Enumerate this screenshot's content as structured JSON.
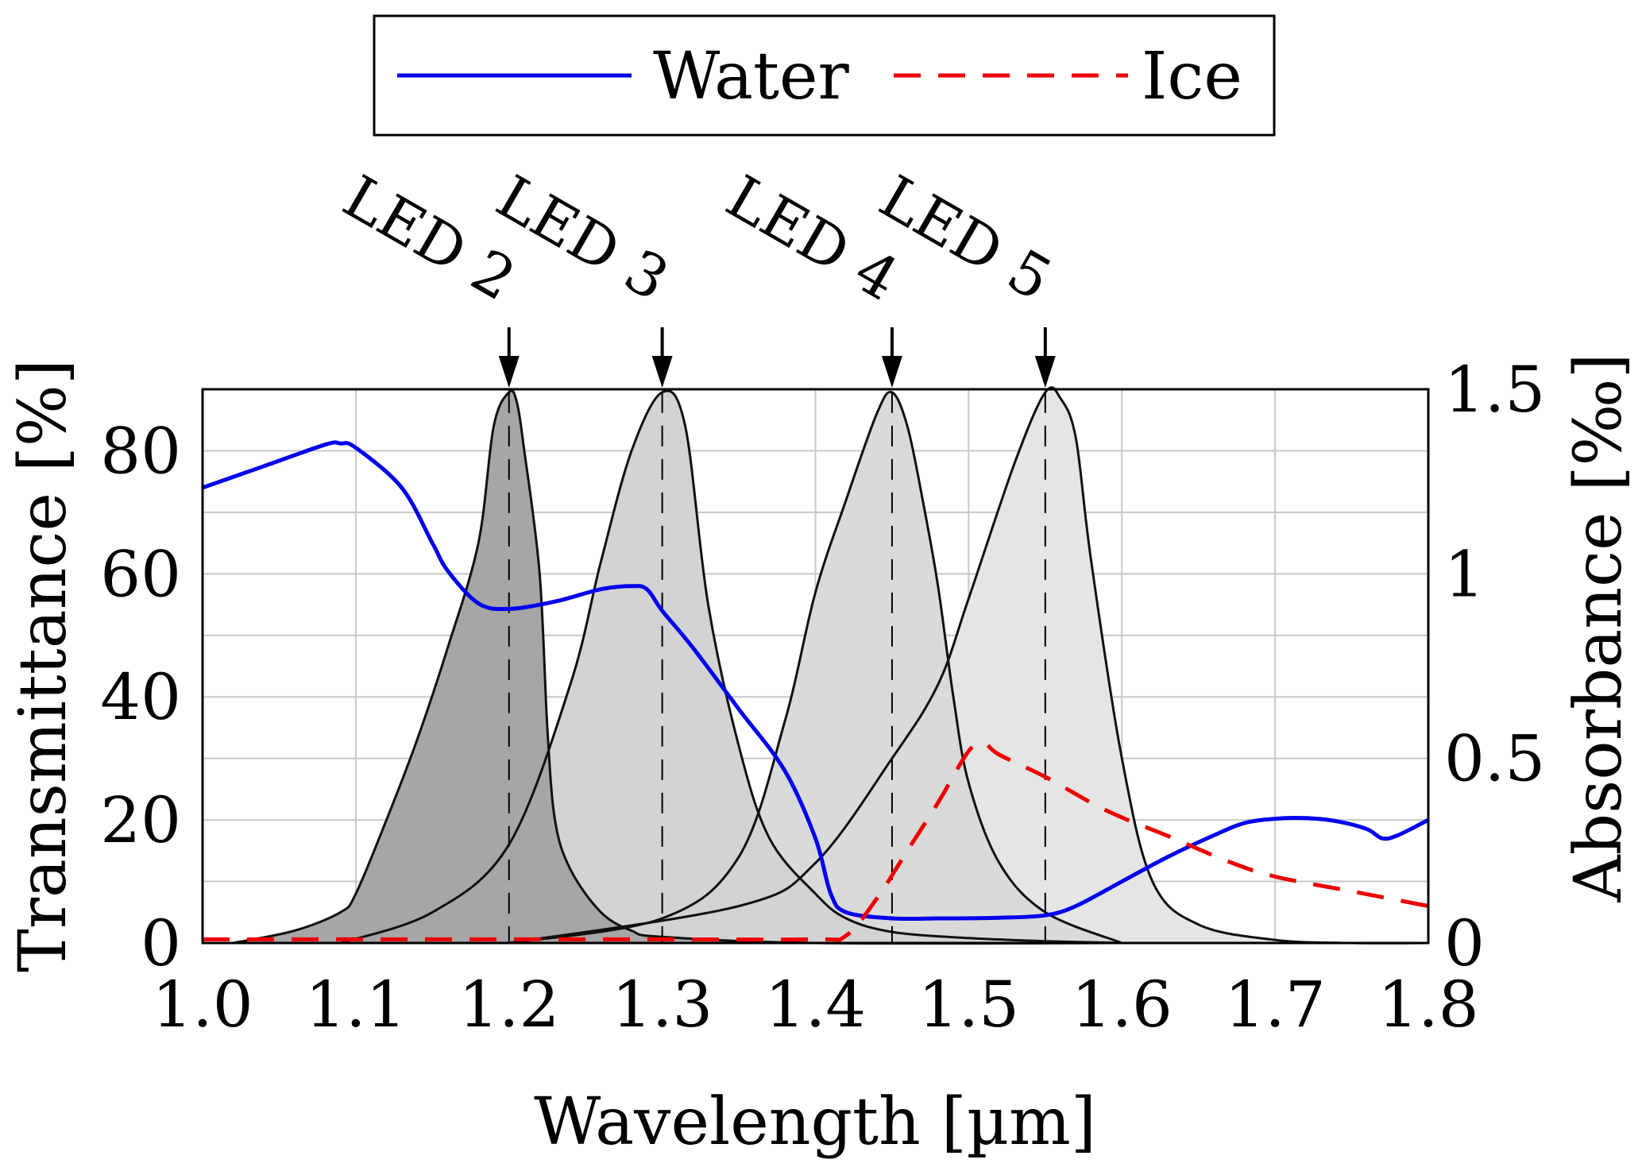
{
  "chart_data": {
    "type": "line",
    "xlabel": "Wavelength [µm]",
    "ylabel_left": "Transmittance [%]",
    "ylabel_right": "Absorbance [‰]",
    "xlim": [
      1.0,
      1.8
    ],
    "ylim_left": [
      0,
      90
    ],
    "ylim_right": [
      0,
      1.5
    ],
    "x_ticks": [
      "1.0",
      "1.1",
      "1.2",
      "1.3",
      "1.4",
      "1.5",
      "1.6",
      "1.7",
      "1.8"
    ],
    "y_left_ticks": [
      "0",
      "20",
      "40",
      "60",
      "80"
    ],
    "y_right_ticks": [
      "0",
      "0.5",
      "1",
      "1.5"
    ],
    "grid": true,
    "legend": {
      "position": "top",
      "entries": [
        "Water",
        "Ice"
      ]
    },
    "series": [
      {
        "name": "Water",
        "axis": "left",
        "color": "#0000ee",
        "style": "solid",
        "x": [
          1.0,
          1.04,
          1.08,
          1.09,
          1.1,
          1.13,
          1.15,
          1.16,
          1.18,
          1.2,
          1.23,
          1.26,
          1.28,
          1.29,
          1.3,
          1.32,
          1.35,
          1.38,
          1.4,
          1.41,
          1.42,
          1.45,
          1.48,
          1.52,
          1.55,
          1.57,
          1.6,
          1.63,
          1.66,
          1.68,
          1.7,
          1.72,
          1.74,
          1.76,
          1.77,
          1.78,
          1.8
        ],
        "y": [
          74,
          77.5,
          81,
          81.2,
          80.5,
          74,
          65,
          60.5,
          55.2,
          54.3,
          55.5,
          57.5,
          58,
          57.5,
          54,
          48,
          38,
          28,
          17,
          8,
          5,
          4,
          4,
          4.1,
          4.5,
          6,
          10,
          14,
          17.5,
          19.5,
          20.2,
          20.3,
          19.8,
          18.5,
          17,
          17.5,
          20
        ]
      },
      {
        "name": "Ice",
        "axis": "right",
        "color": "#ee0000",
        "style": "dashed",
        "x": [
          1.0,
          1.1,
          1.2,
          1.3,
          1.4,
          1.42,
          1.44,
          1.46,
          1.48,
          1.5,
          1.51,
          1.52,
          1.55,
          1.58,
          1.6,
          1.63,
          1.67,
          1.7,
          1.75,
          1.8
        ],
        "y": [
          0.01,
          0.01,
          0.01,
          0.01,
          0.01,
          0.02,
          0.12,
          0.25,
          0.38,
          0.52,
          0.54,
          0.51,
          0.45,
          0.38,
          0.34,
          0.29,
          0.22,
          0.18,
          0.14,
          0.1
        ]
      }
    ],
    "led_bands": [
      {
        "label": "LED 2",
        "peak": 1.2,
        "fill": "#a6a6a6",
        "x": [
          1.02,
          1.06,
          1.09,
          1.1,
          1.12,
          1.14,
          1.16,
          1.18,
          1.19,
          1.2,
          1.205,
          1.21,
          1.22,
          1.225,
          1.23,
          1.24,
          1.26,
          1.28,
          1.3,
          1.4,
          1.6
        ],
        "y": [
          0,
          2,
          5,
          8,
          20,
          33,
          48,
          65,
          84,
          89.5,
          88,
          80,
          60,
          35,
          20,
          12,
          5,
          2,
          1,
          0,
          0
        ]
      },
      {
        "label": "LED 3",
        "peak": 1.3,
        "fill": "#d3d3d3",
        "x": [
          1.09,
          1.15,
          1.2,
          1.24,
          1.26,
          1.28,
          1.3,
          1.315,
          1.33,
          1.35,
          1.37,
          1.4,
          1.42,
          1.45,
          1.5,
          1.55,
          1.6
        ],
        "y": [
          0,
          5,
          16,
          42,
          62,
          80,
          89.5,
          84,
          55,
          32,
          17,
          8,
          4,
          1.8,
          0.8,
          0.3,
          0
        ]
      },
      {
        "label": "LED 4",
        "peak": 1.45,
        "fill": "#dadada",
        "x": [
          1.2,
          1.3,
          1.35,
          1.38,
          1.4,
          1.42,
          1.44,
          1.45,
          1.46,
          1.47,
          1.48,
          1.49,
          1.5,
          1.52,
          1.55,
          1.6
        ],
        "y": [
          0,
          4,
          14,
          36,
          57,
          72,
          86,
          89.5,
          84,
          72,
          58,
          40,
          26,
          13,
          5,
          0
        ]
      },
      {
        "label": "LED 5",
        "peak": 1.55,
        "fill": "#e5e5e5",
        "x": [
          1.2,
          1.35,
          1.4,
          1.45,
          1.48,
          1.5,
          1.53,
          1.55,
          1.56,
          1.57,
          1.58,
          1.6,
          1.62,
          1.65,
          1.7,
          1.75,
          1.8
        ],
        "y": [
          0,
          6,
          13,
          30,
          42,
          56,
          78,
          89.5,
          88.5,
          82,
          62,
          30,
          10,
          3,
          0.5,
          0,
          0
        ]
      }
    ]
  }
}
